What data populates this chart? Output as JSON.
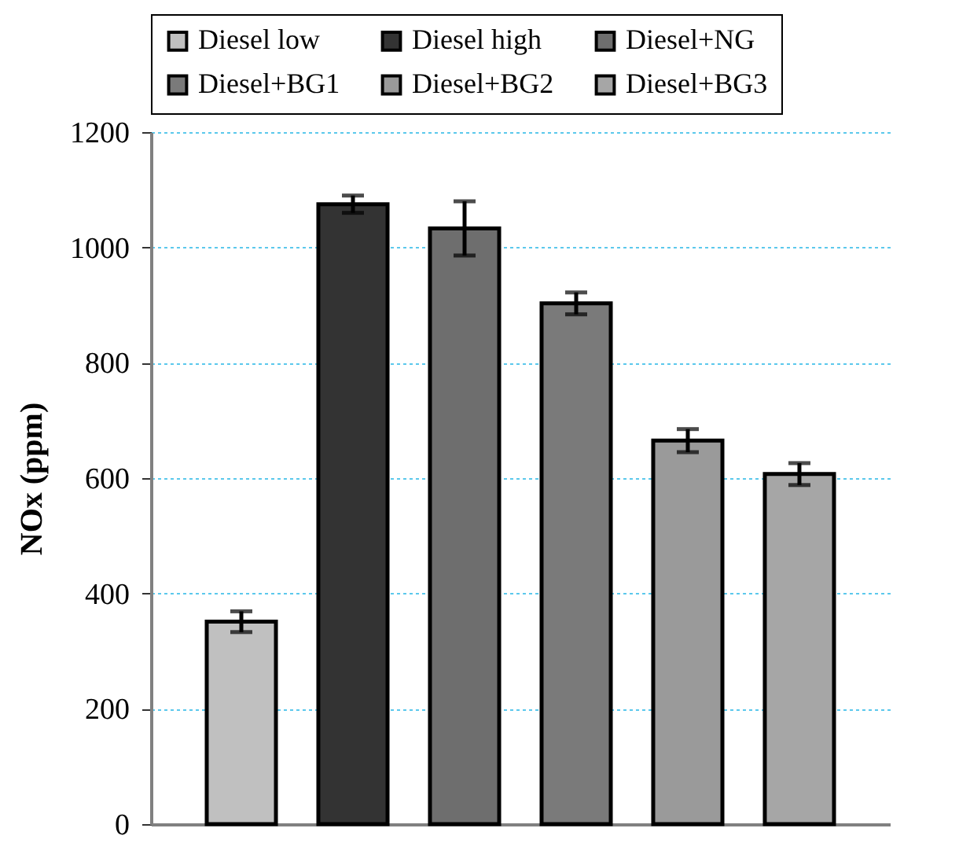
{
  "chart_data": {
    "type": "bar",
    "ylabel": "NOx (ppm)",
    "categories": [
      null,
      null,
      null,
      null,
      null,
      null
    ],
    "series": [
      {
        "name": "Diesel low",
        "color": "#c0c0c0",
        "values": [
          351,
          null,
          null,
          null,
          null,
          null
        ],
        "errors": [
          18,
          null,
          null,
          null,
          null,
          null
        ]
      },
      {
        "name": "Diesel high",
        "color": "#333333",
        "values": [
          null,
          1075,
          null,
          null,
          null,
          null
        ],
        "errors": [
          null,
          15,
          null,
          null,
          null,
          null
        ]
      },
      {
        "name": "Diesel+NG",
        "color": "#6e6e6e",
        "values": [
          null,
          null,
          1033,
          null,
          null,
          null
        ],
        "errors": [
          null,
          null,
          47,
          null,
          null,
          null
        ]
      },
      {
        "name": "Diesel+BG1",
        "color": "#7a7a7a",
        "values": [
          null,
          null,
          null,
          903,
          null,
          null
        ],
        "errors": [
          null,
          null,
          null,
          19,
          null,
          null
        ]
      },
      {
        "name": "Diesel+BG2",
        "color": "#9a9a9a",
        "values": [
          null,
          null,
          null,
          null,
          665,
          null
        ],
        "errors": [
          null,
          null,
          null,
          null,
          20,
          null
        ]
      },
      {
        "name": "Diesel+BG3",
        "color": "#a6a6a6",
        "values": [
          null,
          null,
          null,
          null,
          null,
          607
        ],
        "errors": [
          null,
          null,
          null,
          null,
          null,
          19
        ]
      }
    ],
    "ylim": [
      0,
      1200
    ],
    "yticks": [
      0,
      200,
      400,
      600,
      800,
      1000,
      1200
    ],
    "grid": "y",
    "legend": "top"
  }
}
